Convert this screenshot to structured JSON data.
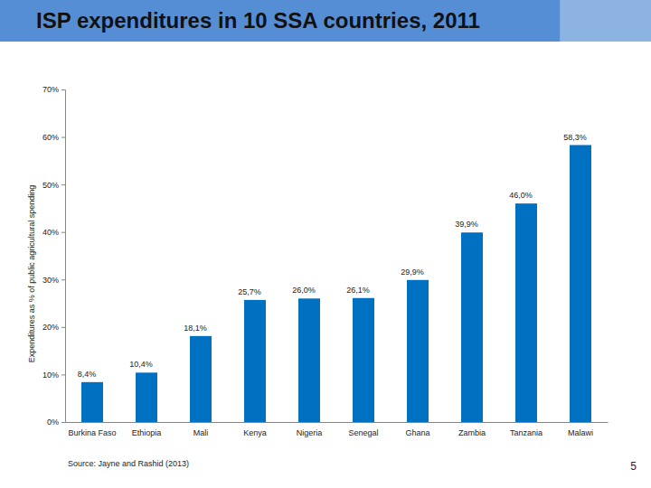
{
  "chart_data": {
    "type": "bar",
    "title": "ISP expenditures in 10 SSA countries, 2011",
    "ylabel": "Expenditures as % of public agricultural spending",
    "categories": [
      "Burkina Faso",
      "Ethiopia",
      "Mali",
      "Kenya",
      "Nigeria",
      "Senegal",
      "Ghana",
      "Zambia",
      "Tanzania",
      "Malawi"
    ],
    "values": [
      8.4,
      10.4,
      18.1,
      25.7,
      26.0,
      26.1,
      29.9,
      39.9,
      46.0,
      58.3
    ],
    "value_labels": [
      "8,4%",
      "10,4%",
      "18,1%",
      "25,7%",
      "26,0%",
      "26,1%",
      "29,9%",
      "39,9%",
      "46,0%",
      "58,3%"
    ],
    "color": "#0070c0",
    "ylim": [
      0,
      70
    ],
    "yticks": [
      {
        "value": 0,
        "label": "0%"
      },
      {
        "value": 10,
        "label": "10%"
      },
      {
        "value": 20,
        "label": "20%"
      },
      {
        "value": 30,
        "label": "30%"
      },
      {
        "value": 40,
        "label": "40%"
      },
      {
        "value": 50,
        "label": "50%"
      },
      {
        "value": 60,
        "label": "60%"
      },
      {
        "value": 70,
        "label": "70%"
      }
    ],
    "grid": false,
    "data_labels": true,
    "annotations": [
      "Source: Jayne and Rashid (2013)",
      "5"
    ]
  }
}
